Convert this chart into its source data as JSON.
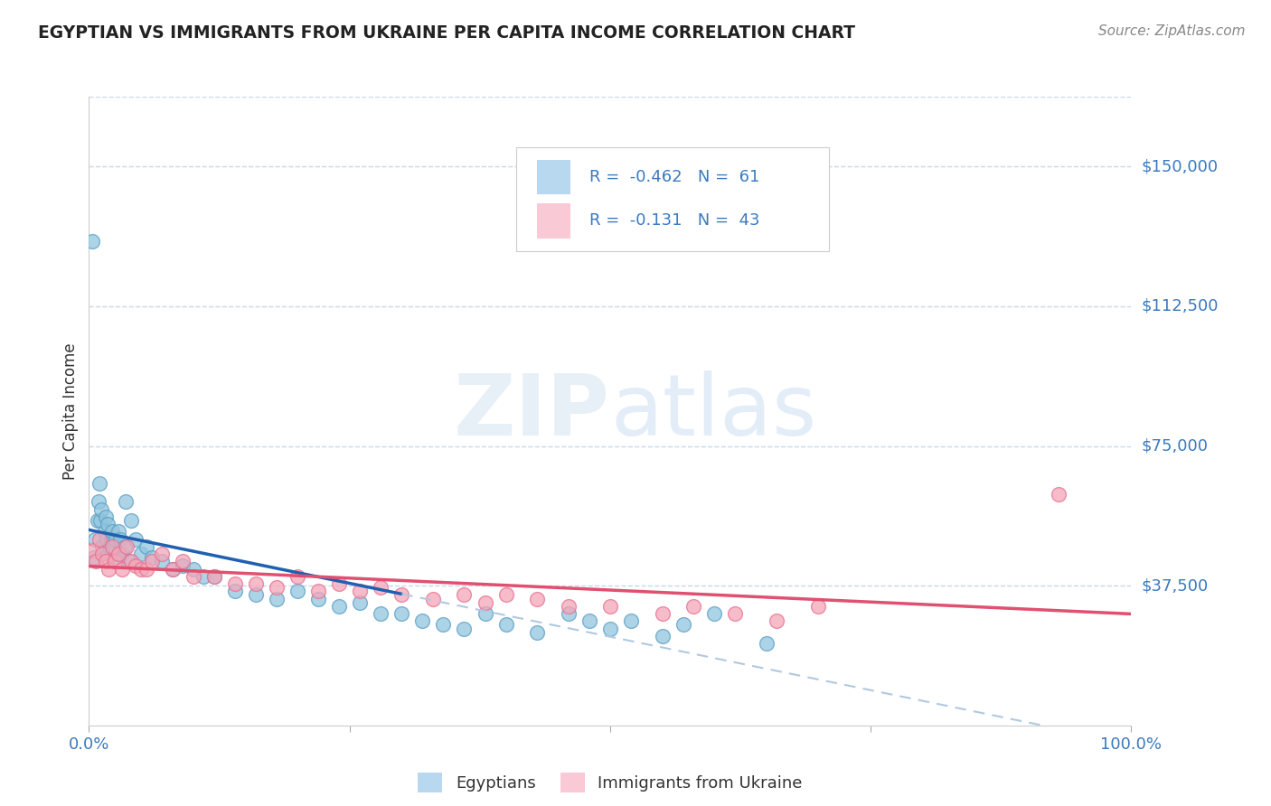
{
  "title": "EGYPTIAN VS IMMIGRANTS FROM UKRAINE PER CAPITA INCOME CORRELATION CHART",
  "source_text": "Source: ZipAtlas.com",
  "ylabel": "Per Capita Income",
  "watermark": "ZIPatlas",
  "xlim": [
    0.0,
    100.0
  ],
  "ylim": [
    0,
    168750
  ],
  "ytick_vals": [
    37500,
    75000,
    112500,
    150000
  ],
  "ytick_labels": [
    "$37,500",
    "$75,000",
    "$112,500",
    "$150,000"
  ],
  "xtick_vals": [
    0,
    25,
    50,
    75,
    100
  ],
  "xtick_labels": [
    "0.0%",
    "",
    "",
    "",
    "100.0%"
  ],
  "series1_color": "#92c5de",
  "series2_color": "#f4a6b8",
  "series1_edge": "#5a9fc4",
  "series2_edge": "#e87090",
  "trendline1_color": "#2060b0",
  "trendline2_color": "#e05070",
  "trendline_dash_color": "#b0c8e0",
  "background_color": "#ffffff",
  "grid_color": "#c8d8ea",
  "title_color": "#222222",
  "axis_label_color": "#333333",
  "tick_label_color": "#3a7abf",
  "legend1_facecolor": "#b8d8f0",
  "legend2_facecolor": "#f9c9d5",
  "legend_edge_color": "#cccccc",
  "egyptians_x": [
    0.3,
    0.5,
    0.6,
    0.8,
    0.9,
    1.0,
    1.1,
    1.2,
    1.3,
    1.5,
    1.6,
    1.7,
    1.8,
    1.9,
    2.0,
    2.1,
    2.2,
    2.3,
    2.5,
    2.6,
    2.7,
    2.8,
    3.0,
    3.2,
    3.4,
    3.5,
    3.8,
    4.0,
    4.5,
    5.0,
    5.5,
    6.0,
    7.0,
    8.0,
    9.0,
    10.0,
    11.0,
    12.0,
    14.0,
    16.0,
    18.0,
    20.0,
    22.0,
    24.0,
    26.0,
    28.0,
    30.0,
    32.0,
    34.0,
    36.0,
    38.0,
    40.0,
    43.0,
    46.0,
    48.0,
    50.0,
    52.0,
    55.0,
    57.0,
    60.0,
    65.0
  ],
  "egyptians_y": [
    130000,
    45000,
    50000,
    55000,
    60000,
    65000,
    55000,
    58000,
    48000,
    52000,
    56000,
    50000,
    54000,
    46000,
    48000,
    50000,
    52000,
    46000,
    48000,
    50000,
    44000,
    52000,
    50000,
    46000,
    48000,
    60000,
    44000,
    55000,
    50000,
    46000,
    48000,
    45000,
    44000,
    42000,
    43000,
    42000,
    40000,
    40000,
    36000,
    35000,
    34000,
    36000,
    34000,
    32000,
    33000,
    30000,
    30000,
    28000,
    27000,
    26000,
    30000,
    27000,
    25000,
    30000,
    28000,
    26000,
    28000,
    24000,
    27000,
    30000,
    22000
  ],
  "ukraine_x": [
    0.4,
    0.7,
    1.0,
    1.3,
    1.6,
    1.9,
    2.2,
    2.5,
    2.8,
    3.2,
    3.6,
    4.0,
    4.5,
    5.0,
    5.5,
    6.0,
    7.0,
    8.0,
    9.0,
    10.0,
    12.0,
    14.0,
    16.0,
    18.0,
    20.0,
    22.0,
    24.0,
    26.0,
    28.0,
    30.0,
    33.0,
    36.0,
    38.0,
    40.0,
    43.0,
    46.0,
    50.0,
    55.0,
    58.0,
    62.0,
    66.0,
    70.0,
    93.0
  ],
  "ukraine_y": [
    47000,
    44000,
    50000,
    46000,
    44000,
    42000,
    48000,
    44000,
    46000,
    42000,
    48000,
    44000,
    43000,
    42000,
    42000,
    44000,
    46000,
    42000,
    44000,
    40000,
    40000,
    38000,
    38000,
    37000,
    40000,
    36000,
    38000,
    36000,
    37000,
    35000,
    34000,
    35000,
    33000,
    35000,
    34000,
    32000,
    32000,
    30000,
    32000,
    30000,
    28000,
    32000,
    62000
  ]
}
